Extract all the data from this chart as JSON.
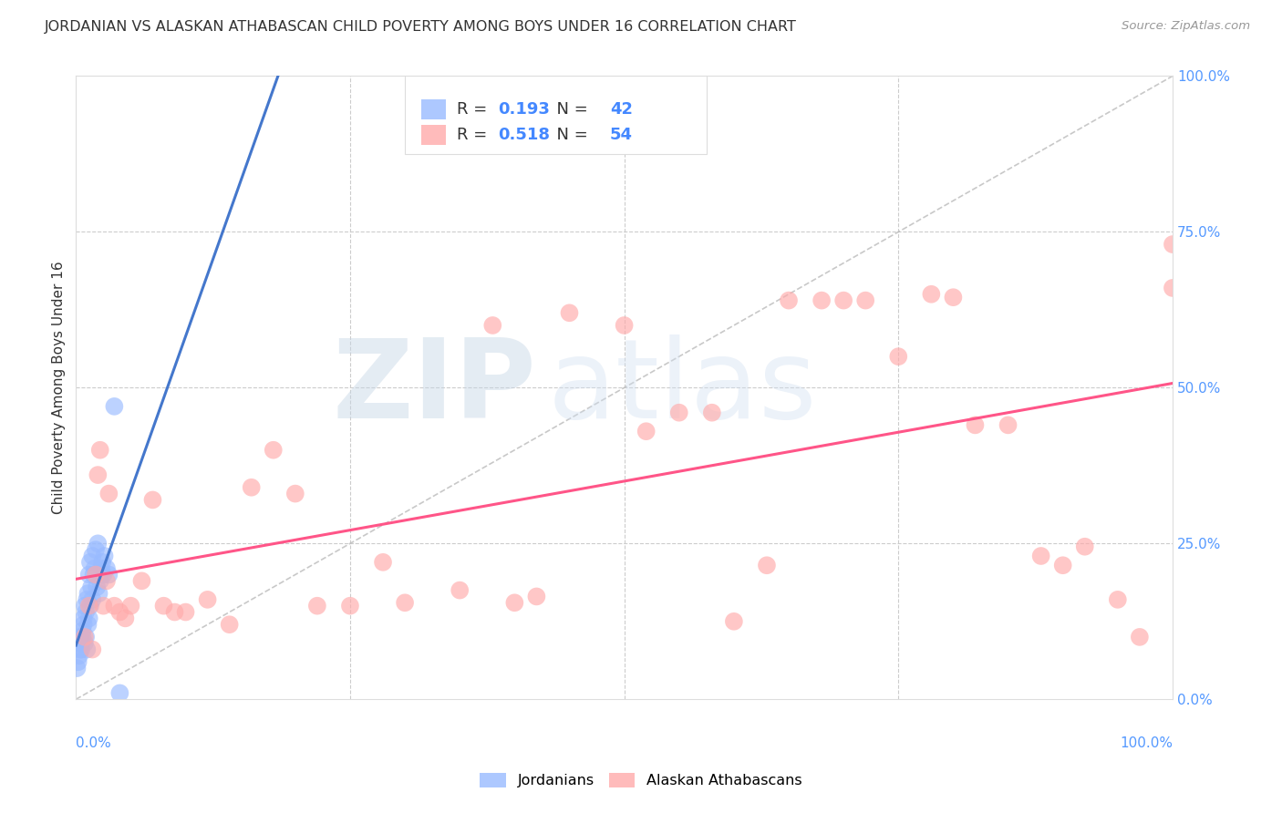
{
  "title": "JORDANIAN VS ALASKAN ATHABASCAN CHILD POVERTY AMONG BOYS UNDER 16 CORRELATION CHART",
  "source": "Source: ZipAtlas.com",
  "ylabel": "Child Poverty Among Boys Under 16",
  "xlim": [
    0,
    1
  ],
  "ylim": [
    0,
    1
  ],
  "grid_ticks": [
    0.25,
    0.5,
    0.75
  ],
  "right_ytick_labels": [
    "0.0%",
    "25.0%",
    "50.0%",
    "75.0%",
    "100.0%"
  ],
  "right_yticks": [
    0.0,
    0.25,
    0.5,
    0.75,
    1.0
  ],
  "r_jordanian": 0.193,
  "n_jordanian": 42,
  "r_athabascan": 0.518,
  "n_athabascan": 54,
  "jordanian_color": "#99BBFF",
  "athabascan_color": "#FFAAAA",
  "jordanian_line_color": "#4477CC",
  "athabascan_line_color": "#FF5588",
  "ref_line_color": "#BBBBBB",
  "watermark_zip_color": "#C8D8E8",
  "watermark_atlas_color": "#D0E0F0",
  "background_color": "#FFFFFF",
  "legend_border_color": "#DDDDDD",
  "text_color": "#333333",
  "blue_label_color": "#4488FF",
  "axis_label_color": "#5599FF",
  "jordanian_x": [
    0.001,
    0.002,
    0.003,
    0.003,
    0.004,
    0.004,
    0.005,
    0.005,
    0.006,
    0.006,
    0.007,
    0.007,
    0.008,
    0.008,
    0.009,
    0.009,
    0.01,
    0.01,
    0.011,
    0.011,
    0.012,
    0.012,
    0.013,
    0.013,
    0.014,
    0.015,
    0.015,
    0.016,
    0.017,
    0.018,
    0.019,
    0.02,
    0.021,
    0.022,
    0.023,
    0.024,
    0.025,
    0.026,
    0.028,
    0.03,
    0.035,
    0.04
  ],
  "jordanian_y": [
    0.05,
    0.06,
    0.07,
    0.09,
    0.08,
    0.1,
    0.08,
    0.09,
    0.1,
    0.11,
    0.12,
    0.13,
    0.09,
    0.15,
    0.1,
    0.14,
    0.08,
    0.16,
    0.12,
    0.17,
    0.13,
    0.2,
    0.15,
    0.22,
    0.18,
    0.16,
    0.23,
    0.2,
    0.21,
    0.24,
    0.18,
    0.25,
    0.17,
    0.19,
    0.21,
    0.22,
    0.2,
    0.23,
    0.21,
    0.2,
    0.47,
    0.01
  ],
  "athabascan_x": [
    0.008,
    0.012,
    0.015,
    0.018,
    0.02,
    0.022,
    0.025,
    0.028,
    0.03,
    0.035,
    0.04,
    0.045,
    0.05,
    0.06,
    0.07,
    0.08,
    0.09,
    0.1,
    0.12,
    0.14,
    0.16,
    0.18,
    0.2,
    0.22,
    0.25,
    0.28,
    0.3,
    0.35,
    0.38,
    0.4,
    0.42,
    0.45,
    0.5,
    0.52,
    0.55,
    0.58,
    0.6,
    0.63,
    0.65,
    0.68,
    0.7,
    0.72,
    0.75,
    0.78,
    0.8,
    0.82,
    0.85,
    0.88,
    0.9,
    0.92,
    0.95,
    0.97,
    1.0,
    1.0
  ],
  "athabascan_y": [
    0.1,
    0.15,
    0.08,
    0.2,
    0.36,
    0.4,
    0.15,
    0.19,
    0.33,
    0.15,
    0.14,
    0.13,
    0.15,
    0.19,
    0.32,
    0.15,
    0.14,
    0.14,
    0.16,
    0.12,
    0.34,
    0.4,
    0.33,
    0.15,
    0.15,
    0.22,
    0.155,
    0.175,
    0.6,
    0.155,
    0.165,
    0.62,
    0.6,
    0.43,
    0.46,
    0.46,
    0.125,
    0.215,
    0.64,
    0.64,
    0.64,
    0.64,
    0.55,
    0.65,
    0.645,
    0.44,
    0.44,
    0.23,
    0.215,
    0.245,
    0.16,
    0.1,
    0.66,
    0.73
  ]
}
